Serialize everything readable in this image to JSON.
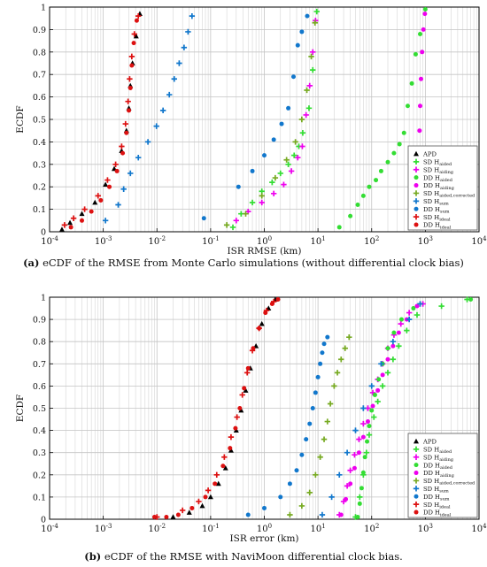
{
  "captions": {
    "a_label": "(a)",
    "a_text": " eCDF of the RMSE from Monte Carlo simulations (without differential clock bias)",
    "b_label": "(b)",
    "b_text": " eCDF of the RMSE with NaviMoon differential clock bias."
  },
  "chart_data": [
    {
      "type": "scatter",
      "xlabel": "ISR RMSE (km)",
      "ylabel": "ECDF",
      "xscale": "log",
      "xlim": [
        0.0001,
        10000
      ],
      "ylim": [
        0,
        1
      ],
      "xticks": [
        "10^-4",
        "10^-3",
        "10^-2",
        "10^-1",
        "10^0",
        "10^1",
        "10^2",
        "10^3",
        "10^4"
      ],
      "yticks": [
        "0",
        "0.1",
        "0.2",
        "0.3",
        "0.4",
        "0.5",
        "0.6",
        "0.7",
        "0.8",
        "0.9",
        "1"
      ],
      "grid": true,
      "legend_position": "bottom-right",
      "series": [
        {
          "name": "APD",
          "sub": "",
          "marker": "triangle",
          "color": "#000000",
          "x": [
            0.00017,
            0.00024,
            0.0004,
            0.0007,
            0.0011,
            0.0016,
            0.0022,
            0.0027,
            0.003,
            0.0032,
            0.0035,
            0.0041,
            0.0048
          ],
          "y": [
            0.01,
            0.04,
            0.08,
            0.13,
            0.21,
            0.28,
            0.36,
            0.45,
            0.55,
            0.65,
            0.75,
            0.87,
            0.97
          ]
        },
        {
          "name": "SD H",
          "sub": "aided",
          "marker": "plus",
          "color": "#33dd33",
          "x": [
            0.26,
            0.37,
            0.6,
            0.9,
            1.4,
            2.0,
            2.8,
            3.6,
            4.4,
            5.2,
            6.8,
            8.0,
            9.5
          ],
          "y": [
            0.02,
            0.08,
            0.13,
            0.18,
            0.22,
            0.26,
            0.3,
            0.34,
            0.38,
            0.44,
            0.55,
            0.72,
            0.98
          ]
        },
        {
          "name": "SD H",
          "sub": "aiding",
          "marker": "plus",
          "color": "#ee00ee",
          "x": [
            0.3,
            0.5,
            0.9,
            1.5,
            2.3,
            3.2,
            4.2,
            5.1,
            6.0,
            7.0,
            8.0,
            9.0
          ],
          "y": [
            0.05,
            0.09,
            0.13,
            0.17,
            0.21,
            0.27,
            0.33,
            0.38,
            0.52,
            0.65,
            0.8,
            0.94
          ]
        },
        {
          "name": "DD H",
          "sub": "aided",
          "marker": "dot",
          "color": "#33dd33",
          "x": [
            25,
            40,
            55,
            70,
            90,
            120,
            150,
            200,
            260,
            330,
            400,
            470,
            560,
            660,
            800,
            1000
          ],
          "y": [
            0.02,
            0.07,
            0.12,
            0.16,
            0.2,
            0.23,
            0.27,
            0.31,
            0.35,
            0.39,
            0.44,
            0.56,
            0.66,
            0.79,
            0.88,
            0.99
          ]
        },
        {
          "name": "DD H",
          "sub": "aiding",
          "marker": "dot",
          "color": "#ee00ee",
          "x": [
            600,
            650,
            700,
            720,
            740,
            760,
            780,
            800,
            830,
            870,
            920,
            980
          ],
          "y": [
            0.02,
            0.08,
            0.13,
            0.18,
            0.27,
            0.34,
            0.45,
            0.56,
            0.68,
            0.8,
            0.9,
            0.97
          ]
        },
        {
          "name": "SD H",
          "sub": "aided,corrected",
          "marker": "plus",
          "color": "#77aa22",
          "x": [
            0.2,
            0.45,
            0.9,
            1.6,
            2.6,
            3.8,
            5.0,
            6.2,
            7.5,
            8.8
          ],
          "y": [
            0.03,
            0.08,
            0.16,
            0.24,
            0.32,
            0.4,
            0.5,
            0.63,
            0.78,
            0.93
          ]
        },
        {
          "name": "SD H",
          "sub": "sum",
          "marker": "plus",
          "color": "#1177cc",
          "x": [
            0.0011,
            0.0019,
            0.0024,
            0.0032,
            0.0045,
            0.0068,
            0.0098,
            0.013,
            0.017,
            0.021,
            0.026,
            0.032,
            0.038,
            0.045
          ],
          "y": [
            0.05,
            0.12,
            0.19,
            0.26,
            0.33,
            0.4,
            0.47,
            0.54,
            0.61,
            0.68,
            0.75,
            0.82,
            0.89,
            0.96
          ]
        },
        {
          "name": "DD H",
          "sub": "sum",
          "marker": "dot",
          "color": "#1177cc",
          "x": [
            0.075,
            0.33,
            0.6,
            1.0,
            1.5,
            2.1,
            2.8,
            3.5,
            4.2,
            5.0,
            6.3
          ],
          "y": [
            0.06,
            0.2,
            0.27,
            0.34,
            0.41,
            0.48,
            0.55,
            0.69,
            0.83,
            0.89,
            0.96
          ]
        },
        {
          "name": "SD H",
          "sub": "ideal",
          "marker": "plus",
          "color": "#dd1111",
          "x": [
            0.00019,
            0.00028,
            0.00045,
            0.0008,
            0.0012,
            0.0017,
            0.0022,
            0.0026,
            0.0029,
            0.0031,
            0.0034,
            0.0038,
            0.0045
          ],
          "y": [
            0.03,
            0.06,
            0.1,
            0.16,
            0.23,
            0.3,
            0.38,
            0.48,
            0.58,
            0.68,
            0.78,
            0.88,
            0.96
          ]
        },
        {
          "name": "DD H",
          "sub": "ideal",
          "marker": "dot",
          "color": "#dd1111",
          "x": [
            0.00025,
            0.0004,
            0.0006,
            0.0009,
            0.0013,
            0.0018,
            0.0023,
            0.0027,
            0.003,
            0.0032,
            0.0034,
            0.0037,
            0.0042
          ],
          "y": [
            0.02,
            0.05,
            0.09,
            0.14,
            0.2,
            0.27,
            0.35,
            0.44,
            0.54,
            0.64,
            0.74,
            0.84,
            0.94
          ]
        }
      ]
    },
    {
      "type": "scatter",
      "xlabel": "ISR error (km)",
      "ylabel": "ECDF",
      "xscale": "log",
      "xlim": [
        0.0001,
        10000
      ],
      "ylim": [
        0,
        1
      ],
      "xticks": [
        "10^-4",
        "10^-3",
        "10^-2",
        "10^-1",
        "10^0",
        "10^1",
        "10^2",
        "10^3",
        "10^4"
      ],
      "yticks": [
        "0",
        "0.1",
        "0.2",
        "0.3",
        "0.4",
        "0.5",
        "0.6",
        "0.7",
        "0.8",
        "0.9",
        "1"
      ],
      "grid": true,
      "legend_position": "bottom-right",
      "series": [
        {
          "name": "APD",
          "sub": "",
          "marker": "triangle",
          "color": "#000000",
          "x": [
            0.02,
            0.04,
            0.07,
            0.1,
            0.14,
            0.19,
            0.24,
            0.3,
            0.37,
            0.45,
            0.55,
            0.7,
            0.9,
            1.2,
            1.6
          ],
          "y": [
            0.01,
            0.03,
            0.06,
            0.1,
            0.16,
            0.23,
            0.31,
            0.4,
            0.49,
            0.58,
            0.68,
            0.78,
            0.88,
            0.95,
            0.99
          ]
        },
        {
          "name": "SD H",
          "sub": "aided",
          "marker": "plus",
          "color": "#33dd33",
          "x": [
            50,
            60,
            70,
            80,
            90,
            110,
            130,
            160,
            200,
            250,
            320,
            450,
            700,
            2000,
            6000
          ],
          "y": [
            0.01,
            0.1,
            0.2,
            0.3,
            0.38,
            0.46,
            0.53,
            0.6,
            0.66,
            0.72,
            0.78,
            0.85,
            0.92,
            0.96,
            0.99
          ]
        },
        {
          "name": "SD H",
          "sub": "aiding",
          "marker": "plus",
          "color": "#ee00ee",
          "x": [
            25,
            30,
            35,
            40,
            48,
            58,
            70,
            85,
            105,
            130,
            160,
            200,
            260,
            350,
            500,
            900
          ],
          "y": [
            0.02,
            0.08,
            0.15,
            0.22,
            0.29,
            0.36,
            0.43,
            0.5,
            0.57,
            0.63,
            0.7,
            0.77,
            0.83,
            0.88,
            0.93,
            0.97
          ]
        },
        {
          "name": "DD H",
          "sub": "aided",
          "marker": "dot",
          "color": "#33dd33",
          "x": [
            55,
            60,
            65,
            70,
            75,
            82,
            90,
            100,
            115,
            135,
            160,
            200,
            260,
            360,
            600,
            7000
          ],
          "y": [
            0.01,
            0.07,
            0.14,
            0.21,
            0.28,
            0.35,
            0.42,
            0.49,
            0.56,
            0.63,
            0.7,
            0.77,
            0.84,
            0.9,
            0.95,
            0.99
          ]
        },
        {
          "name": "DD H",
          "sub": "aiding",
          "marker": "dot",
          "color": "#ee00ee",
          "x": [
            27,
            33,
            40,
            48,
            58,
            70,
            85,
            105,
            130,
            160,
            200,
            250,
            320,
            450,
            700
          ],
          "y": [
            0.02,
            0.09,
            0.16,
            0.23,
            0.3,
            0.37,
            0.44,
            0.51,
            0.58,
            0.65,
            0.72,
            0.78,
            0.84,
            0.9,
            0.96
          ]
        },
        {
          "name": "SD H",
          "sub": "aided,corrected",
          "marker": "plus",
          "color": "#77aa22",
          "x": [
            3,
            5,
            7,
            9,
            11,
            13,
            15,
            17,
            20,
            23,
            27,
            32,
            38
          ],
          "y": [
            0.02,
            0.06,
            0.12,
            0.2,
            0.28,
            0.36,
            0.44,
            0.52,
            0.6,
            0.66,
            0.72,
            0.77,
            0.82
          ]
        },
        {
          "name": "SD H",
          "sub": "sum",
          "marker": "plus",
          "color": "#1177cc",
          "x": [
            12,
            18,
            25,
            35,
            50,
            70,
            100,
            150,
            250,
            500,
            800
          ],
          "y": [
            0.02,
            0.1,
            0.2,
            0.3,
            0.4,
            0.5,
            0.6,
            0.7,
            0.8,
            0.9,
            0.97
          ]
        },
        {
          "name": "DD H",
          "sub": "sum",
          "marker": "dot",
          "color": "#1177cc",
          "x": [
            0.5,
            1,
            2,
            3,
            4,
            5,
            6,
            7,
            8,
            9,
            10,
            11,
            12,
            13,
            15
          ],
          "y": [
            0.02,
            0.05,
            0.1,
            0.16,
            0.22,
            0.29,
            0.36,
            0.43,
            0.5,
            0.57,
            0.64,
            0.7,
            0.75,
            0.79,
            0.82
          ]
        },
        {
          "name": "SD H",
          "sub": "ideal",
          "marker": "plus",
          "color": "#dd1111",
          "x": [
            0.01,
            0.03,
            0.06,
            0.09,
            0.13,
            0.18,
            0.24,
            0.31,
            0.39,
            0.48,
            0.6,
            0.8,
            1.1,
            1.5
          ],
          "y": [
            0.01,
            0.04,
            0.08,
            0.13,
            0.2,
            0.28,
            0.37,
            0.46,
            0.56,
            0.66,
            0.76,
            0.86,
            0.94,
            0.98
          ]
        },
        {
          "name": "DD H",
          "sub": "ideal",
          "marker": "dot",
          "color": "#dd1111",
          "x": [
            0.009,
            0.015,
            0.025,
            0.045,
            0.08,
            0.12,
            0.17,
            0.23,
            0.29,
            0.35,
            0.42,
            0.5,
            0.62,
            0.8,
            1.05,
            1.4,
            1.8
          ],
          "y": [
            0.01,
            0.01,
            0.02,
            0.05,
            0.1,
            0.16,
            0.24,
            0.32,
            0.41,
            0.5,
            0.59,
            0.68,
            0.77,
            0.86,
            0.93,
            0.97,
            0.99
          ]
        }
      ]
    }
  ]
}
